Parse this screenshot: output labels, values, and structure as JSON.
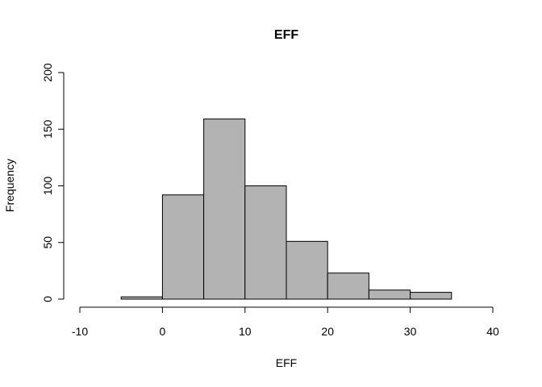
{
  "chart_data": {
    "type": "bar",
    "title": "EFF",
    "xlabel": "EFF",
    "ylabel": "Frequency",
    "bins": [
      {
        "from": -5,
        "to": 0,
        "count": 2
      },
      {
        "from": 0,
        "to": 5,
        "count": 92
      },
      {
        "from": 5,
        "to": 10,
        "count": 159
      },
      {
        "from": 10,
        "to": 15,
        "count": 100
      },
      {
        "from": 15,
        "to": 20,
        "count": 51
      },
      {
        "from": 20,
        "to": 25,
        "count": 23
      },
      {
        "from": 25,
        "to": 30,
        "count": 8
      },
      {
        "from": 30,
        "to": 35,
        "count": 6
      }
    ],
    "xlim": [
      -10,
      40
    ],
    "ylim": [
      0,
      200
    ],
    "x_ticks": [
      -10,
      0,
      10,
      20,
      30,
      40
    ],
    "x_tick_labels": [
      "-10",
      "0",
      "10",
      "20",
      "30",
      "40"
    ],
    "y_ticks": [
      0,
      50,
      100,
      150,
      200
    ],
    "y_tick_labels": [
      "0",
      "50",
      "100",
      "150",
      "200"
    ],
    "bar_color": "#b3b3b3",
    "grid": false
  }
}
